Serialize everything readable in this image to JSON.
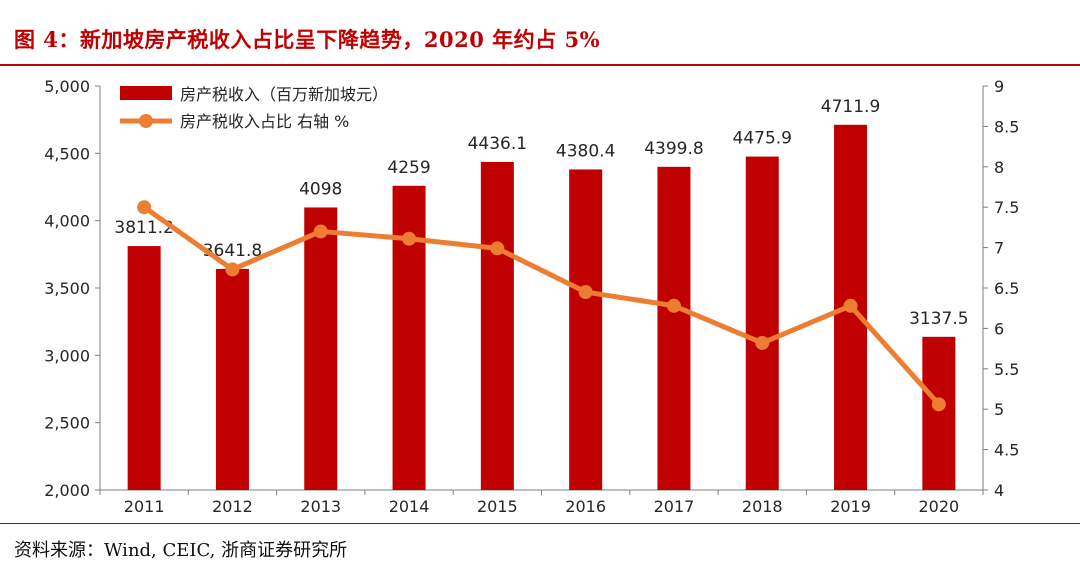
{
  "title": "图 4：新加坡房产税收入占比呈下降趋势，2020 年约占 5%",
  "source": "资料来源：Wind, CEIC, 浙商证券研究所",
  "colors": {
    "bar": "#c00000",
    "line": "#ed7d31",
    "title": "#c00000"
  },
  "chart_data": {
    "type": "bar",
    "categories": [
      "2011",
      "2012",
      "2013",
      "2014",
      "2015",
      "2016",
      "2017",
      "2018",
      "2019",
      "2020"
    ],
    "series": [
      {
        "name": "房产税收入（百万新加坡元）",
        "type": "bar",
        "axis": "left",
        "values": [
          3811.2,
          3641.8,
          4098,
          4259,
          4436.1,
          4380.4,
          4399.8,
          4475.9,
          4711.9,
          3137.5
        ],
        "labels": [
          "3811.2",
          "3641.8",
          "4098",
          "4259",
          "4436.1",
          "4380.4",
          "4399.8",
          "4475.9",
          "4711.9",
          "3137.5"
        ]
      },
      {
        "name": "房产税收入占比 右轴 %",
        "type": "line",
        "axis": "right",
        "values": [
          7.5,
          6.73,
          7.2,
          7.11,
          6.99,
          6.45,
          6.28,
          5.82,
          6.28,
          5.06
        ]
      }
    ],
    "ylim_left": [
      2000,
      5000
    ],
    "yticks_left": [
      "2,000",
      "2,500",
      "3,000",
      "3,500",
      "4,000",
      "4,500",
      "5,000"
    ],
    "ylim_right": [
      4,
      9
    ],
    "yticks_right": [
      "4",
      "4.5",
      "5",
      "5.5",
      "6",
      "6.5",
      "7",
      "7.5",
      "8",
      "8.5",
      "9"
    ],
    "legend": "top-left",
    "grid": false
  }
}
